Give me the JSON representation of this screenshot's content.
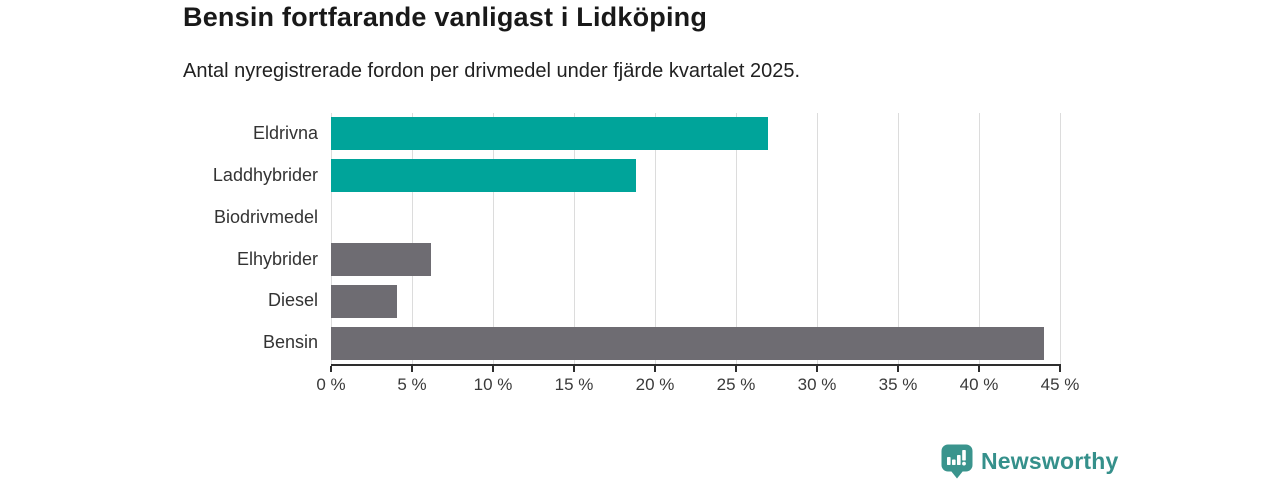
{
  "title": "Bensin fortfarande vanligast i Lidköping",
  "subtitle": "Antal nyregistrerade fordon per drivmedel under fjärde kvartalet 2025.",
  "chart_data": {
    "type": "bar",
    "orientation": "horizontal",
    "title": "Bensin fortfarande vanligast i Lidköping",
    "subtitle": "Antal nyregistrerade fordon per drivmedel under fjärde kvartalet 2025.",
    "categories": [
      "Eldrivna",
      "Laddhybrider",
      "Biodrivmedel",
      "Elhybrider",
      "Diesel",
      "Bensin"
    ],
    "values": [
      27,
      18.8,
      0,
      6.2,
      4.1,
      44
    ],
    "unit": "%",
    "xlim": [
      0,
      45
    ],
    "x_tick_step": 5,
    "x_tick_values": [
      0,
      5,
      10,
      15,
      20,
      25,
      30,
      35,
      40,
      45
    ],
    "x_tick_labels": [
      "0 %",
      "5 %",
      "10 %",
      "15 %",
      "20 %",
      "25 %",
      "30 %",
      "35 %",
      "40 %",
      "45 %"
    ],
    "bar_colors": [
      "#00a49a",
      "#00a49a",
      "#6e6c72",
      "#6e6c72",
      "#6e6c72",
      "#6e6c72"
    ],
    "grid": "vertical-on",
    "legend": "none",
    "colors": {
      "highlight": "#00a49a",
      "default": "#6e6c72",
      "gridline": "#dcdcdc",
      "axis_line": "#2e2e2e",
      "label_text": "#333333"
    }
  },
  "branding": {
    "logo_text": "Newsworthy",
    "logo_text_color": "#35908b",
    "icon": "newsworthy-barchart-bubble-icon",
    "icon_color": "#3a948d"
  }
}
